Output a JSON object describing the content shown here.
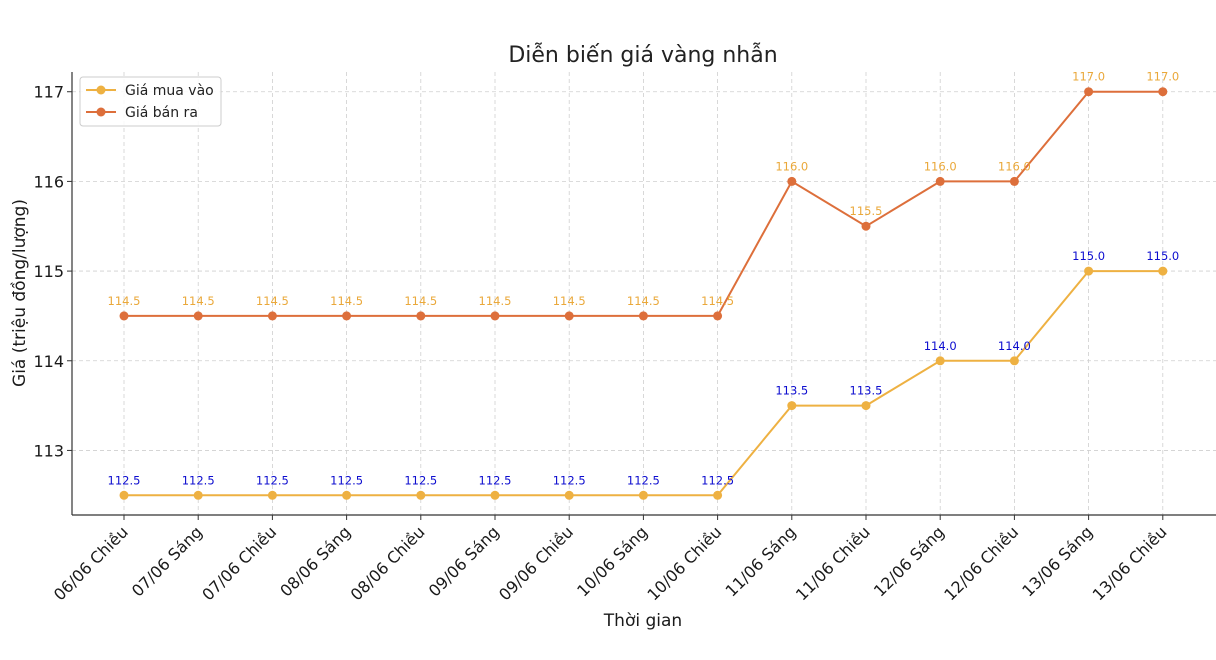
{
  "chart_data": {
    "type": "line",
    "title": "Diễn biến giá vàng nhẫn",
    "xlabel": "Thời gian",
    "ylabel": "Giá (triệu đồng/lượng)",
    "categories": [
      "06/06 Chiều",
      "07/06 Sáng",
      "07/06 Chiều",
      "08/06 Sáng",
      "08/06 Chiều",
      "09/06 Sáng",
      "09/06 Chiều",
      "10/06 Sáng",
      "10/06 Chiều",
      "11/06 Sáng",
      "11/06 Chiều",
      "12/06 Sáng",
      "12/06 Chiều",
      "13/06 Sáng",
      "13/06 Chiều"
    ],
    "ylim": [
      112.28,
      117.22
    ],
    "yticks": [
      113,
      114,
      115,
      116,
      117
    ],
    "grid": true,
    "legend_position": "top-left",
    "series": [
      {
        "name": "Giá mua vào",
        "color": "#eeb142",
        "label_color": "#0d0dcf",
        "values": [
          112.5,
          112.5,
          112.5,
          112.5,
          112.5,
          112.5,
          112.5,
          112.5,
          112.5,
          113.5,
          113.5,
          114.0,
          114.0,
          115.0,
          115.0
        ],
        "labels": [
          "112.5",
          "112.5",
          "112.5",
          "112.5",
          "112.5",
          "112.5",
          "112.5",
          "112.5",
          "112.5",
          "113.5",
          "113.5",
          "114.0",
          "114.0",
          "115.0",
          "115.0"
        ]
      },
      {
        "name": "Giá bán ra",
        "color": "#dd6f3b",
        "label_color": "#eaa83a",
        "values": [
          114.5,
          114.5,
          114.5,
          114.5,
          114.5,
          114.5,
          114.5,
          114.5,
          114.5,
          116.0,
          115.5,
          116.0,
          116.0,
          117.0,
          117.0
        ],
        "labels": [
          "114.5",
          "114.5",
          "114.5",
          "114.5",
          "114.5",
          "114.5",
          "114.5",
          "114.5",
          "114.5",
          "116.0",
          "115.5",
          "116.0",
          "116.0",
          "117.0",
          "117.0"
        ]
      }
    ]
  }
}
